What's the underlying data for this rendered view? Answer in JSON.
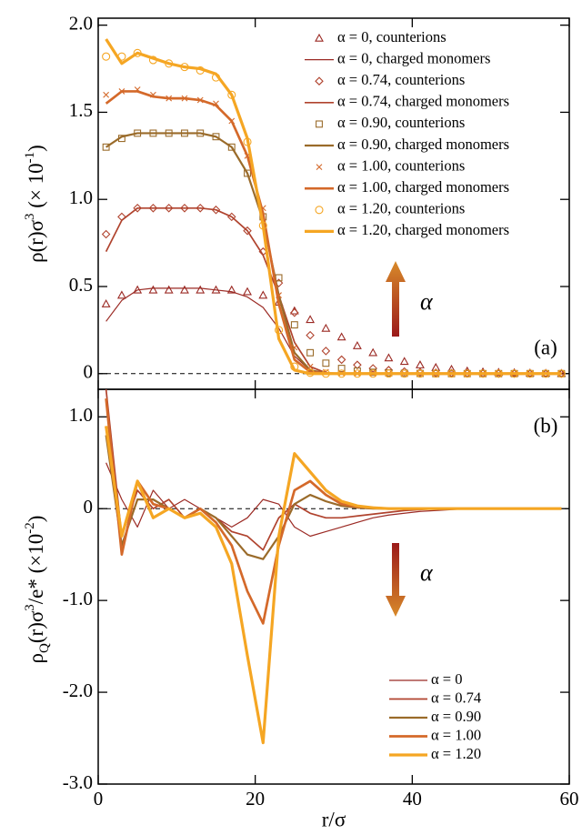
{
  "chart_data": [
    {
      "type": "line",
      "ylabel": [
        "ρ(r)σ",
        "3",
        " (× 10",
        "-1",
        ")"
      ],
      "panel_label": "(a)",
      "arrow_label": "α",
      "xlim": [
        0,
        60
      ],
      "xticks": [
        0,
        20,
        40,
        60
      ],
      "xticklabels": false,
      "ylim": [
        -0.09,
        2.04
      ],
      "yticks": [
        0,
        0.5,
        {
          "value": 1,
          "label": "1.0"
        },
        1.5,
        {
          "value": 2,
          "label": "2.0"
        }
      ],
      "zeroline": true,
      "x": [
        1,
        3,
        5,
        7,
        9,
        11,
        13,
        15,
        17,
        19,
        21,
        23,
        25,
        27,
        29,
        31,
        33,
        35,
        37,
        39,
        41,
        43,
        45,
        47,
        49,
        51,
        53,
        55,
        57,
        59
      ],
      "series": [
        {
          "name": "α = 0, counterions",
          "color": "#9b2a24",
          "marker": "triangle",
          "values": [
            0.4,
            0.45,
            0.48,
            0.48,
            0.48,
            0.48,
            0.48,
            0.48,
            0.48,
            0.47,
            0.45,
            0.41,
            0.36,
            0.31,
            0.26,
            0.21,
            0.16,
            0.12,
            0.09,
            0.07,
            0.05,
            0.035,
            0.025,
            0.015,
            0.01,
            0.007,
            0.005,
            0.003,
            0.002,
            0.001
          ]
        },
        {
          "name": "α = 0, charged monomers",
          "color": "#9b2a24",
          "linewidth": 1.2,
          "values": [
            0.3,
            0.42,
            0.48,
            0.49,
            0.49,
            0.49,
            0.49,
            0.48,
            0.47,
            0.44,
            0.38,
            0.26,
            0.1,
            0.02,
            0.002,
            0,
            0,
            0,
            0,
            0,
            0,
            0,
            0,
            0,
            0,
            0,
            0,
            0,
            0,
            0
          ]
        },
        {
          "name": "α = 0.74, counterions",
          "color": "#b0432e",
          "marker": "diamond",
          "values": [
            0.8,
            0.9,
            0.95,
            0.95,
            0.95,
            0.95,
            0.95,
            0.94,
            0.9,
            0.82,
            0.7,
            0.52,
            0.35,
            0.22,
            0.13,
            0.08,
            0.05,
            0.03,
            0.02,
            0.012,
            0.008,
            0.005,
            0.003,
            0.002,
            0.001,
            0,
            0,
            0,
            0,
            0
          ]
        },
        {
          "name": "α = 0.74, charged monomers",
          "color": "#b0432e",
          "linewidth": 1.7,
          "values": [
            0.7,
            0.88,
            0.95,
            0.95,
            0.95,
            0.95,
            0.95,
            0.94,
            0.9,
            0.82,
            0.68,
            0.45,
            0.18,
            0.04,
            0.005,
            0,
            0,
            0,
            0,
            0,
            0,
            0,
            0,
            0,
            0,
            0,
            0,
            0,
            0,
            0
          ]
        },
        {
          "name": "α = 0.90, counterions",
          "color": "#9a6b2a",
          "marker": "square",
          "values": [
            1.3,
            1.35,
            1.38,
            1.38,
            1.38,
            1.38,
            1.38,
            1.36,
            1.3,
            1.15,
            0.9,
            0.55,
            0.28,
            0.12,
            0.06,
            0.03,
            0.015,
            0.008,
            0.004,
            0.002,
            0.001,
            0,
            0,
            0,
            0,
            0,
            0,
            0,
            0,
            0
          ]
        },
        {
          "name": "α = 0.90, charged monomers",
          "color": "#9a6b2a",
          "linewidth": 2.2,
          "values": [
            1.3,
            1.36,
            1.38,
            1.38,
            1.38,
            1.38,
            1.38,
            1.36,
            1.3,
            1.15,
            0.88,
            0.45,
            0.12,
            0.02,
            0.002,
            0,
            0,
            0,
            0,
            0,
            0,
            0,
            0,
            0,
            0,
            0,
            0,
            0,
            0,
            0
          ]
        },
        {
          "name": "α = 1.00, counterions",
          "color": "#d4692a",
          "marker": "x",
          "values": [
            1.6,
            1.62,
            1.63,
            1.6,
            1.58,
            1.58,
            1.57,
            1.55,
            1.45,
            1.25,
            0.95,
            0.45,
            0.15,
            0.04,
            0.01,
            0.003,
            0.001,
            0,
            0,
            0,
            0,
            0,
            0,
            0,
            0,
            0,
            0,
            0,
            0,
            0
          ]
        },
        {
          "name": "α = 1.00, charged monomers",
          "color": "#d4692a",
          "linewidth": 2.7,
          "values": [
            1.55,
            1.62,
            1.62,
            1.59,
            1.58,
            1.58,
            1.57,
            1.54,
            1.45,
            1.25,
            0.92,
            0.4,
            0.08,
            0.01,
            0.001,
            0,
            0,
            0,
            0,
            0,
            0,
            0,
            0,
            0,
            0,
            0,
            0,
            0,
            0,
            0
          ]
        },
        {
          "name": "α = 1.20, counterions",
          "color": "#f5a623",
          "marker": "circle",
          "values": [
            1.82,
            1.82,
            1.84,
            1.8,
            1.78,
            1.76,
            1.74,
            1.7,
            1.6,
            1.33,
            0.85,
            0.25,
            0.04,
            0.005,
            0,
            0,
            0,
            0,
            0,
            0,
            0,
            0,
            0,
            0,
            0,
            0,
            0,
            0,
            0,
            0
          ]
        },
        {
          "name": "α = 1.20, charged monomers",
          "color": "#f5a623",
          "linewidth": 3.2,
          "values": [
            1.92,
            1.78,
            1.84,
            1.81,
            1.78,
            1.76,
            1.75,
            1.72,
            1.6,
            1.35,
            0.85,
            0.2,
            0.02,
            0,
            0,
            0,
            0,
            0,
            0,
            0,
            0,
            0,
            0,
            0,
            0,
            0,
            0,
            0,
            0,
            0
          ]
        }
      ]
    },
    {
      "type": "line",
      "ylabel": [
        "ρ",
        "Q",
        "(r)σ",
        "3",
        "/e* (×10",
        "-2",
        ")"
      ],
      "xlabel": "r/σ",
      "panel_label": "(b)",
      "arrow_label": "α",
      "xlim": [
        0,
        60
      ],
      "xticks": [
        0,
        20,
        40,
        60
      ],
      "xticklabels": true,
      "ylim": [
        -3.0,
        1.3
      ],
      "yticks": [
        {
          "value": -3,
          "label": "-3.0"
        },
        {
          "value": -2,
          "label": "-2.0"
        },
        {
          "value": -1,
          "label": "-1.0"
        },
        0,
        {
          "value": 1,
          "label": "1.0"
        }
      ],
      "zeroline": true,
      "x": [
        1,
        3,
        5,
        7,
        9,
        11,
        13,
        15,
        17,
        19,
        21,
        23,
        25,
        27,
        29,
        31,
        33,
        35,
        37,
        39,
        41,
        43,
        45,
        47,
        49,
        51,
        53,
        55,
        57,
        59
      ],
      "series": [
        {
          "name": "α = 0",
          "color": "#9b2a24",
          "linewidth": 1.2,
          "values": [
            0.5,
            0.1,
            -0.2,
            0.2,
            0.0,
            0.1,
            0.0,
            -0.1,
            -0.2,
            -0.1,
            0.1,
            0.05,
            -0.2,
            -0.3,
            -0.25,
            -0.2,
            -0.15,
            -0.1,
            -0.07,
            -0.05,
            -0.03,
            -0.02,
            -0.01,
            0,
            0,
            0,
            0,
            0,
            0,
            0
          ]
        },
        {
          "name": "α = 0.74",
          "color": "#b0432e",
          "linewidth": 1.7,
          "values": [
            1.3,
            -0.3,
            0.2,
            0.0,
            0.1,
            -0.1,
            0.0,
            -0.1,
            -0.25,
            -0.3,
            -0.45,
            -0.1,
            0.05,
            -0.05,
            -0.1,
            -0.1,
            -0.08,
            -0.06,
            -0.04,
            -0.02,
            -0.01,
            0,
            0,
            0,
            0,
            0,
            0,
            0,
            0,
            0
          ]
        },
        {
          "name": "α = 0.90",
          "color": "#9a6b2a",
          "linewidth": 2.2,
          "values": [
            0.8,
            -0.4,
            0.1,
            0.1,
            0.0,
            -0.1,
            0.0,
            -0.1,
            -0.3,
            -0.5,
            -0.55,
            -0.3,
            0.05,
            0.15,
            0.08,
            0.03,
            0.01,
            0,
            0,
            0,
            0,
            0,
            0,
            0,
            0,
            0,
            0,
            0,
            0,
            0
          ]
        },
        {
          "name": "α = 1.00",
          "color": "#d4692a",
          "linewidth": 2.7,
          "values": [
            1.2,
            -0.5,
            0.3,
            0.05,
            0.0,
            -0.1,
            0.0,
            -0.15,
            -0.4,
            -0.9,
            -1.25,
            -0.4,
            0.2,
            0.3,
            0.15,
            0.05,
            0.02,
            0.01,
            0,
            0,
            0,
            0,
            0,
            0,
            0,
            0,
            0,
            0,
            0,
            0
          ]
        },
        {
          "name": "α = 1.20",
          "color": "#f5a623",
          "linewidth": 3.2,
          "values": [
            0.9,
            -0.3,
            0.3,
            -0.1,
            0.0,
            -0.1,
            -0.05,
            -0.2,
            -0.6,
            -1.6,
            -2.55,
            -0.3,
            0.6,
            0.4,
            0.2,
            0.08,
            0.03,
            0.01,
            0,
            0,
            0,
            0,
            0,
            0,
            0,
            0,
            0,
            0,
            0,
            0
          ]
        }
      ]
    }
  ]
}
